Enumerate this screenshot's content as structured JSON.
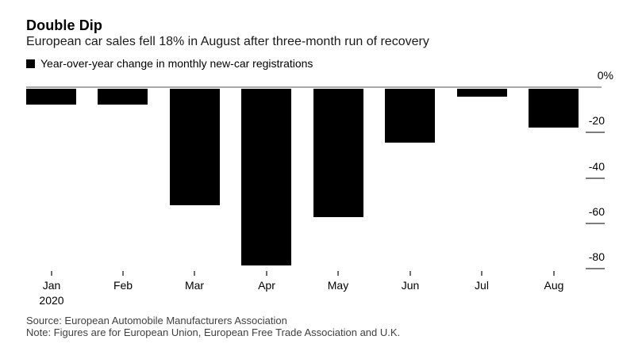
{
  "header": {
    "title": "Double Dip",
    "subtitle": "European car sales fell 18% in August after three-month run of recovery",
    "legend": {
      "swatch_color": "#000000",
      "label": "Year-over-year change in monthly new-car registrations"
    }
  },
  "chart_data": {
    "type": "bar",
    "title": "Double Dip",
    "subtitle": "European car sales fell 18% in August after three-month run of recovery",
    "series_name": "Year-over-year change in monthly new-car registrations",
    "categories": [
      "Jan",
      "Feb",
      "Mar",
      "Apr",
      "May",
      "Jun",
      "Jul",
      "Aug"
    ],
    "x_axis_year_label": "2020",
    "values": [
      -7.5,
      -7.2,
      -51.8,
      -78.3,
      -56.8,
      -24.1,
      -3.7,
      -17.6
    ],
    "unit": "percent",
    "xlabel": "",
    "ylabel": "",
    "ylim": [
      -81,
      0
    ],
    "y_ticks": [
      0,
      -20,
      -40,
      -60,
      -80
    ],
    "y_tick_labels": [
      "0%",
      "-20",
      "-40",
      "-60",
      "-80"
    ],
    "y_axis_side": "right",
    "grid": "short right-side dashes only",
    "legend_position": "top-left",
    "bar_color": "#000000",
    "axis_line_color": "#a9a9a9",
    "tick_color": "#7d7d7d"
  },
  "footer": {
    "source": "Source: European Automobile Manufacturers Association",
    "note": "Note: Figures are for European Union, European Free Trade Association and U.K."
  }
}
